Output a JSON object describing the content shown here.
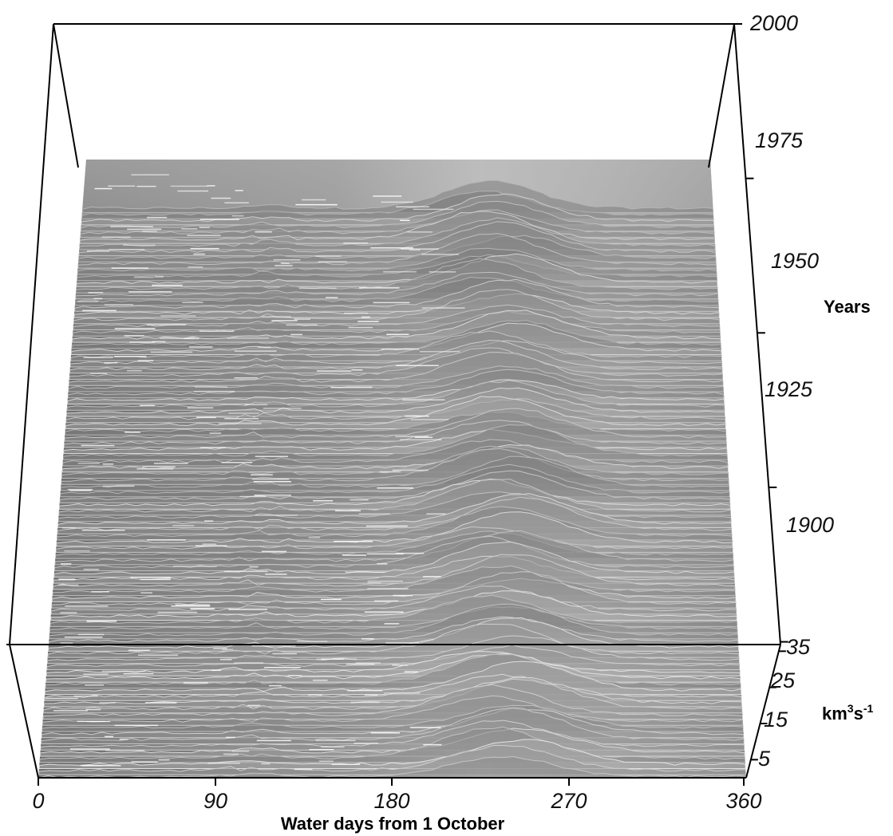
{
  "chart_data": {
    "type": "surface-3d",
    "xlabel": "Water days from 1 October",
    "ylabel": "Years",
    "zlabel_base": "km",
    "zlabel_sup1": "3",
    "zlabel_mid": "s",
    "zlabel_sup2": "-1",
    "x_ticks": [
      "0",
      "90",
      "180",
      "270",
      "360"
    ],
    "y_ticks": [
      "1900",
      "1925",
      "1950",
      "1975",
      "2000"
    ],
    "z_ticks": [
      "5",
      "15",
      "25",
      "35"
    ],
    "xlim": [
      0,
      360
    ],
    "ylim": [
      1878,
      2000
    ],
    "zlim": [
      0,
      35
    ],
    "data_years": [
      1878,
      1970
    ],
    "color": "grayscale"
  }
}
